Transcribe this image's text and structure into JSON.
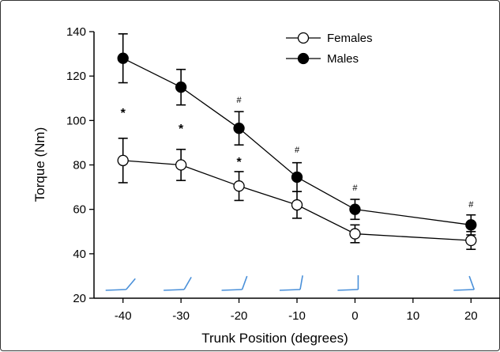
{
  "chart_data": {
    "type": "line",
    "xlabel": "Trunk Position (degrees)",
    "ylabel": "Torque (Nm)",
    "xlim": [
      -45,
      25
    ],
    "ylim": [
      20,
      140
    ],
    "x_ticks": [
      "-40",
      "-30",
      "-20",
      "-10",
      "0",
      "10",
      "20"
    ],
    "y_ticks": [
      "20",
      "40",
      "60",
      "80",
      "100",
      "120",
      "140"
    ],
    "legend_position": "top-right",
    "series": [
      {
        "name": "Females",
        "marker": "open-circle",
        "x": [
          -40,
          -30,
          -20,
          -10,
          0,
          20
        ],
        "y": [
          82,
          80,
          70.5,
          62,
          49,
          46
        ],
        "error": [
          10,
          7,
          6.5,
          6,
          4,
          4
        ]
      },
      {
        "name": "Males",
        "marker": "filled-circle",
        "x": [
          -40,
          -30,
          -20,
          -10,
          0,
          20
        ],
        "y": [
          128,
          115,
          96.5,
          74.5,
          60,
          53
        ],
        "error": [
          11,
          8,
          7.5,
          6.5,
          4.5,
          4.5
        ]
      }
    ],
    "annotations": [
      {
        "text": "*",
        "x": -40,
        "y": 101.5
      },
      {
        "text": "*",
        "x": -30,
        "y": 94.5
      },
      {
        "text": "*",
        "x": -20,
        "y": 79.5
      },
      {
        "text": "#",
        "x": -20,
        "y": 108
      },
      {
        "text": "#",
        "x": -10,
        "y": 85.5
      },
      {
        "text": "#",
        "x": 0,
        "y": 68.5
      },
      {
        "text": "#",
        "x": 20,
        "y": 61
      }
    ],
    "position_icon_color": "#4a90d9"
  }
}
